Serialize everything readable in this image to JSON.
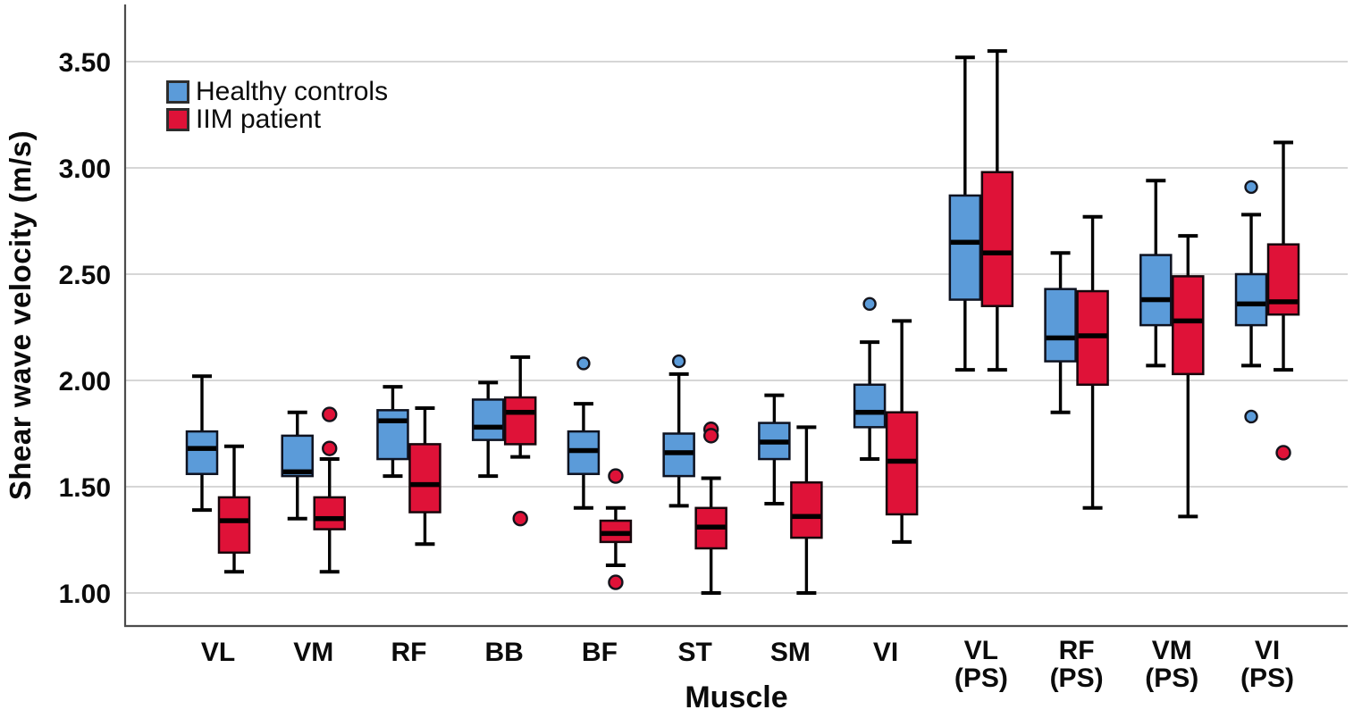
{
  "figure": {
    "y_axis_title": "Shear wave velocity (m/s)",
    "x_axis_title": "Muscle"
  },
  "chart_data": {
    "type": "boxplot",
    "title": "",
    "xlabel": "Muscle",
    "ylabel": "Shear wave velocity (m/s)",
    "ylim": [
      0.85,
      3.76
    ],
    "grid": true,
    "legend_position": "top-left",
    "yticks": [
      {
        "value": 1.0,
        "label": "1.00"
      },
      {
        "value": 1.5,
        "label": "1.50"
      },
      {
        "value": 2.0,
        "label": "2.00"
      },
      {
        "value": 2.5,
        "label": "2.50"
      },
      {
        "value": 3.0,
        "label": "3.00"
      },
      {
        "value": 3.5,
        "label": "3.50"
      }
    ],
    "categories": [
      "VL",
      "VM",
      "RF",
      "BB",
      "BF",
      "ST",
      "SM",
      "VI",
      "VL (PS)",
      "RF (PS)",
      "VM (PS)",
      "VI (PS)"
    ],
    "category_label_lines": [
      [
        "VL"
      ],
      [
        "VM"
      ],
      [
        "RF"
      ],
      [
        "BB"
      ],
      [
        "BF"
      ],
      [
        "ST"
      ],
      [
        "SM"
      ],
      [
        "VI"
      ],
      [
        "VL",
        "(PS)"
      ],
      [
        "RF",
        "(PS)"
      ],
      [
        "VM",
        "(PS)"
      ],
      [
        "VI",
        "(PS)"
      ]
    ],
    "series": [
      {
        "name": "Healthy controls",
        "fill": "#5b9bd9",
        "edge": "#0e1220",
        "outlier_radius": 6.5,
        "boxes": [
          {
            "whislo": 1.39,
            "q1": 1.56,
            "med": 1.68,
            "q3": 1.76,
            "whishi": 2.02,
            "outliers": []
          },
          {
            "whislo": 1.35,
            "q1": 1.55,
            "med": 1.57,
            "q3": 1.74,
            "whishi": 1.85,
            "outliers": []
          },
          {
            "whislo": 1.55,
            "q1": 1.63,
            "med": 1.81,
            "q3": 1.86,
            "whishi": 1.97,
            "outliers": []
          },
          {
            "whislo": 1.55,
            "q1": 1.72,
            "med": 1.78,
            "q3": 1.91,
            "whishi": 1.99,
            "outliers": []
          },
          {
            "whislo": 1.4,
            "q1": 1.56,
            "med": 1.67,
            "q3": 1.76,
            "whishi": 1.89,
            "outliers": [
              2.08
            ]
          },
          {
            "whislo": 1.41,
            "q1": 1.55,
            "med": 1.66,
            "q3": 1.75,
            "whishi": 2.03,
            "outliers": [
              2.09
            ]
          },
          {
            "whislo": 1.42,
            "q1": 1.63,
            "med": 1.71,
            "q3": 1.8,
            "whishi": 1.93,
            "outliers": []
          },
          {
            "whislo": 1.63,
            "q1": 1.78,
            "med": 1.85,
            "q3": 1.98,
            "whishi": 2.18,
            "outliers": [
              2.36
            ]
          },
          {
            "whislo": 2.05,
            "q1": 2.38,
            "med": 2.65,
            "q3": 2.87,
            "whishi": 3.52,
            "outliers": []
          },
          {
            "whislo": 1.85,
            "q1": 2.09,
            "med": 2.2,
            "q3": 2.43,
            "whishi": 2.6,
            "outliers": []
          },
          {
            "whislo": 2.07,
            "q1": 2.26,
            "med": 2.38,
            "q3": 2.59,
            "whishi": 2.94,
            "outliers": []
          },
          {
            "whislo": 2.07,
            "q1": 2.26,
            "med": 2.36,
            "q3": 2.5,
            "whishi": 2.78,
            "outliers": [
              2.91,
              1.83
            ]
          }
        ]
      },
      {
        "name": "IIM patient",
        "fill": "#df1238",
        "edge": "#16060b",
        "outlier_radius": 7.5,
        "boxes": [
          {
            "whislo": 1.1,
            "q1": 1.19,
            "med": 1.34,
            "q3": 1.45,
            "whishi": 1.69,
            "outliers": []
          },
          {
            "whislo": 1.1,
            "q1": 1.3,
            "med": 1.35,
            "q3": 1.45,
            "whishi": 1.63,
            "outliers": [
              1.84,
              1.68
            ]
          },
          {
            "whislo": 1.23,
            "q1": 1.38,
            "med": 1.51,
            "q3": 1.7,
            "whishi": 1.87,
            "outliers": []
          },
          {
            "whislo": 1.64,
            "q1": 1.7,
            "med": 1.85,
            "q3": 1.92,
            "whishi": 2.11,
            "outliers": [
              1.35
            ]
          },
          {
            "whislo": 1.13,
            "q1": 1.24,
            "med": 1.28,
            "q3": 1.34,
            "whishi": 1.4,
            "outliers": [
              1.55,
              1.05
            ]
          },
          {
            "whislo": 1.0,
            "q1": 1.21,
            "med": 1.31,
            "q3": 1.4,
            "whishi": 1.54,
            "outliers": [
              1.77,
              1.74
            ]
          },
          {
            "whislo": 1.0,
            "q1": 1.26,
            "med": 1.36,
            "q3": 1.52,
            "whishi": 1.78,
            "outliers": []
          },
          {
            "whislo": 1.24,
            "q1": 1.37,
            "med": 1.62,
            "q3": 1.85,
            "whishi": 2.28,
            "outliers": []
          },
          {
            "whislo": 2.05,
            "q1": 2.35,
            "med": 2.6,
            "q3": 2.98,
            "whishi": 3.55,
            "outliers": []
          },
          {
            "whislo": 1.4,
            "q1": 1.98,
            "med": 2.21,
            "q3": 2.42,
            "whishi": 2.77,
            "outliers": []
          },
          {
            "whislo": 1.36,
            "q1": 2.03,
            "med": 2.28,
            "q3": 2.49,
            "whishi": 2.68,
            "outliers": []
          },
          {
            "whislo": 2.05,
            "q1": 2.31,
            "med": 2.37,
            "q3": 2.64,
            "whishi": 3.12,
            "outliers": [
              1.66
            ]
          }
        ]
      }
    ],
    "style": {
      "gridline_color": "#c8c8c8",
      "axis_line_color": "#4c4c4c",
      "median_color": "#000000",
      "whisker_color": "#000000"
    }
  }
}
